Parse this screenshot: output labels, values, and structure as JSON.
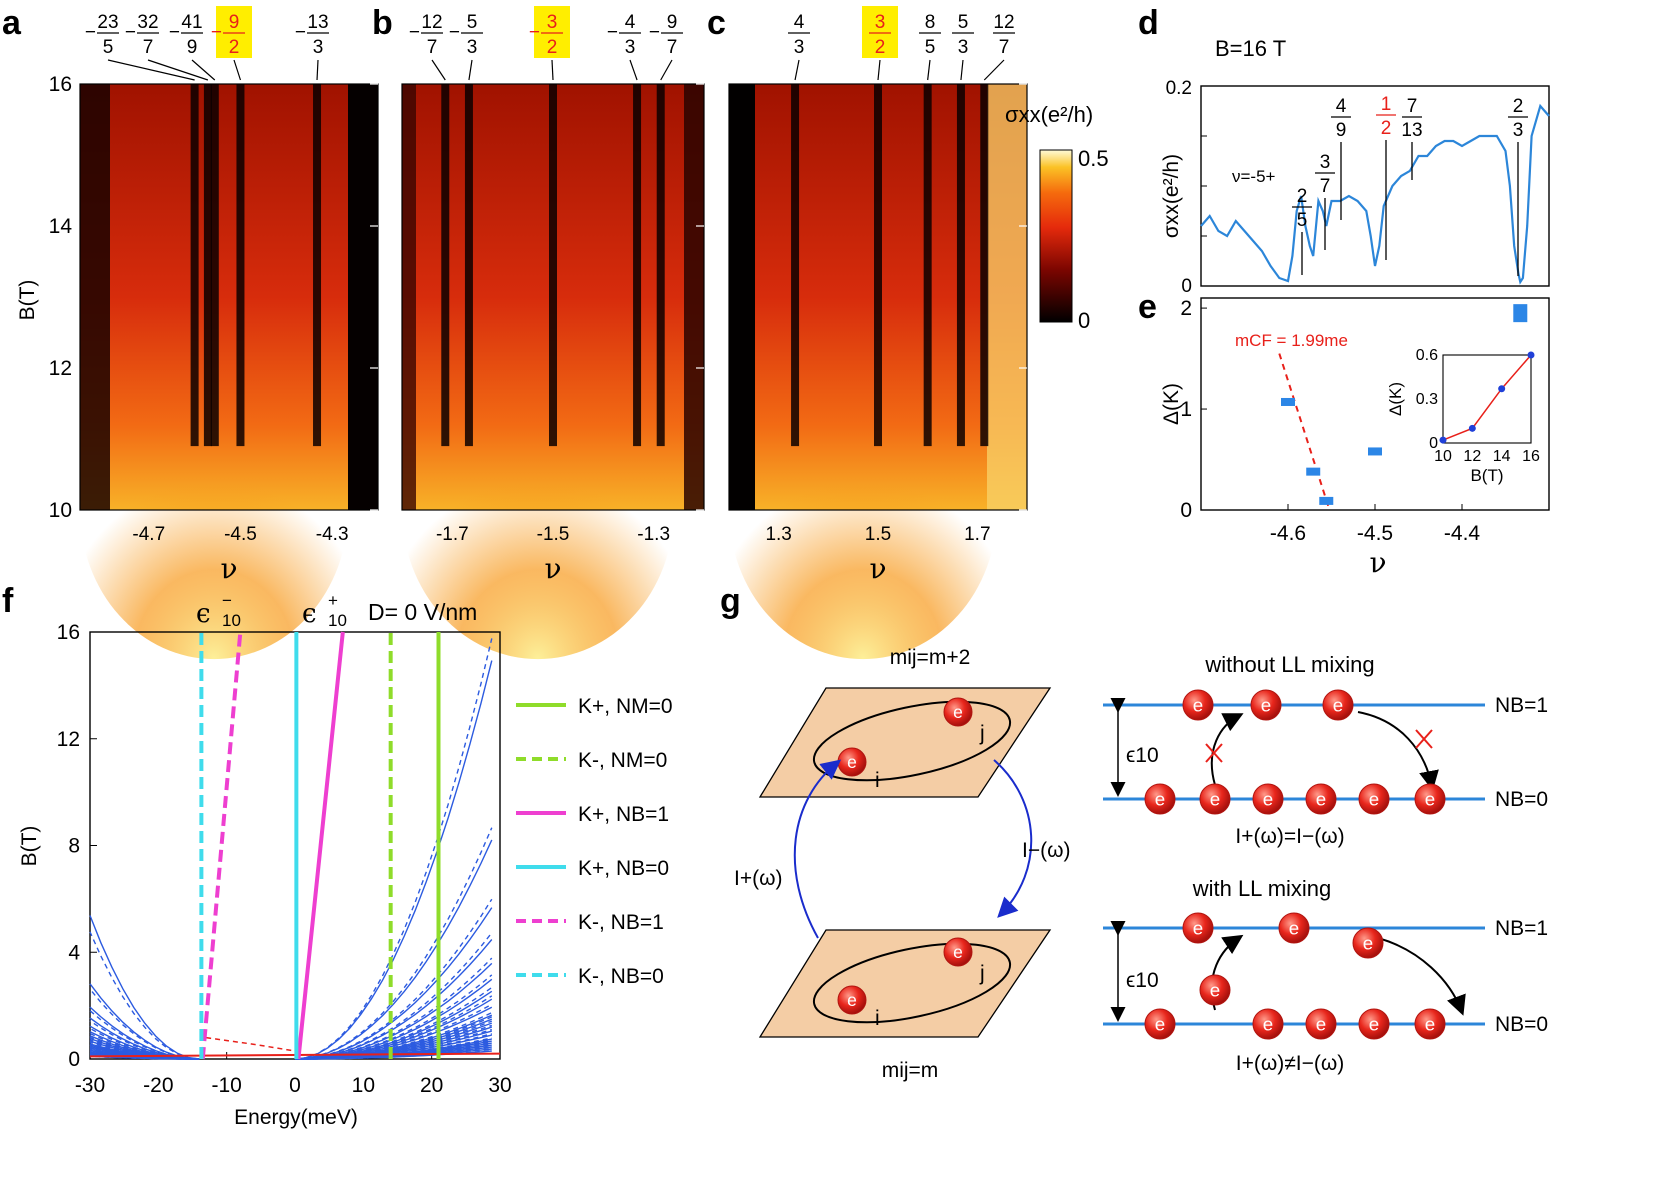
{
  "panels": {
    "a": "a",
    "b": "b",
    "c": "c",
    "d": "d",
    "e": "e",
    "f": "f",
    "g": "g"
  },
  "axis_common": {
    "b_label": "B(T)",
    "nu": "ν",
    "b_ticks": [
      "10",
      "12",
      "14",
      "16"
    ]
  },
  "colorbar": {
    "label": "σxx(e²/h)",
    "max": "0.5",
    "min": "0"
  },
  "map_a": {
    "x_ticks": [
      "-4.7",
      "-4.5",
      "-4.3"
    ],
    "fractions": [
      {
        "sign": "-",
        "num": "23",
        "den": "5",
        "highlight": false
      },
      {
        "sign": "-",
        "num": "32",
        "den": "7",
        "highlight": false
      },
      {
        "sign": "-",
        "num": "41",
        "den": "9",
        "highlight": false
      },
      {
        "sign": "-",
        "num": "9",
        "den": "2",
        "highlight": true
      },
      {
        "sign": "-",
        "num": "13",
        "den": "3",
        "highlight": false
      }
    ]
  },
  "map_b": {
    "x_ticks": [
      "-1.7",
      "-1.5",
      "-1.3"
    ],
    "fractions": [
      {
        "sign": "-",
        "num": "12",
        "den": "7",
        "highlight": false
      },
      {
        "sign": "-",
        "num": "5",
        "den": "3",
        "highlight": false
      },
      {
        "sign": "-",
        "num": "3",
        "den": "2",
        "highlight": true
      },
      {
        "sign": "-",
        "num": "4",
        "den": "3",
        "highlight": false
      },
      {
        "sign": "-",
        "num": "9",
        "den": "7",
        "highlight": false
      }
    ]
  },
  "map_c": {
    "x_ticks": [
      "1.3",
      "1.5",
      "1.7"
    ],
    "fractions": [
      {
        "sign": "",
        "num": "4",
        "den": "3",
        "highlight": false
      },
      {
        "sign": "",
        "num": "3",
        "den": "2",
        "highlight": true
      },
      {
        "sign": "",
        "num": "8",
        "den": "5",
        "highlight": false
      },
      {
        "sign": "",
        "num": "5",
        "den": "3",
        "highlight": false
      },
      {
        "sign": "",
        "num": "12",
        "den": "7",
        "highlight": false
      }
    ]
  },
  "panel_d": {
    "field": "B=16 T",
    "ylabel": "σxx(e²/h)",
    "y_ticks": [
      "0",
      "0.2"
    ],
    "prefix": "ν=-5+",
    "fractions": [
      {
        "num": "2",
        "den": "5",
        "color": "#000000"
      },
      {
        "num": "3",
        "den": "7",
        "color": "#000000"
      },
      {
        "num": "4",
        "den": "9",
        "color": "#000000"
      },
      {
        "num": "1",
        "den": "2",
        "color": "#e8201a"
      },
      {
        "num": "7",
        "den": "13",
        "color": "#000000"
      },
      {
        "num": "2",
        "den": "3",
        "color": "#000000"
      }
    ]
  },
  "panel_e": {
    "ylabel": "Δ(K)",
    "y_ticks": [
      "0",
      "1",
      "2"
    ],
    "x_ticks": [
      "-4.6",
      "-4.5",
      "-4.4"
    ],
    "fit_label": "mCF = 1.99me",
    "inset": {
      "ylabel": "Δ(K)",
      "xlabel": "B(T)",
      "x_ticks": [
        "10",
        "12",
        "14",
        "16"
      ],
      "y_ticks": [
        "0",
        "0.3",
        "0.6"
      ]
    }
  },
  "panel_f": {
    "ylabel": "B(T)",
    "xlabel": "Energy(meV)",
    "x_ticks": [
      "-30",
      "-20",
      "-10",
      "0",
      "10",
      "20",
      "30"
    ],
    "y_ticks": [
      "0",
      "4",
      "8",
      "12",
      "16"
    ],
    "eps_minus": "ϵ",
    "eps_minus_sup": "−",
    "eps_sub": "10",
    "eps_plus_sup": "+",
    "d_label": "D= 0 V/nm",
    "legend": [
      {
        "label": "K+, NM=0",
        "color": "#8fdc2a",
        "dash": false
      },
      {
        "label": "K-, NM=0",
        "color": "#8fdc2a",
        "dash": true
      },
      {
        "label": "K+, NB=1",
        "color": "#ee3fd0",
        "dash": false
      },
      {
        "label": "K+, NB=0",
        "color": "#3fdcec",
        "dash": false
      },
      {
        "label": "K-, NB=1",
        "color": "#ee3fd0",
        "dash": true
      },
      {
        "label": "K-, NB=0",
        "color": "#3fdcec",
        "dash": true
      }
    ]
  },
  "panel_g": {
    "top_plane": "mij=m+2",
    "bottom_plane": "mij=m",
    "i": "i",
    "j": "j",
    "e": "e",
    "I_plus": "I+(ω)",
    "I_minus": "I−(ω)",
    "without_title": "without LL mixing",
    "with_title": "with LL mixing",
    "NB1": "NB=1",
    "NB0": "NB=0",
    "eps": "ϵ10",
    "eq": "I+(ω)=I−(ω)",
    "neq": "I+(ω)≠I−(ω)"
  },
  "chart_data": [
    {
      "type": "heatmap",
      "panel": "a",
      "xlabel": "ν",
      "ylabel": "B(T)",
      "xlim": [
        -4.85,
        -4.2
      ],
      "ylim": [
        10,
        16
      ],
      "colorbar_range": [
        0,
        0.5
      ],
      "features": {
        "minima_nu": [
          -4.6,
          -4.571,
          -4.556,
          -4.5,
          -4.333
        ]
      }
    },
    {
      "type": "heatmap",
      "panel": "b",
      "xlabel": "ν",
      "ylabel": "B(T)",
      "xlim": [
        -1.8,
        -1.2
      ],
      "ylim": [
        10,
        16
      ],
      "colorbar_range": [
        0,
        0.5
      ],
      "features": {
        "minima_nu": [
          -1.714,
          -1.667,
          -1.5,
          -1.333,
          -1.286
        ]
      }
    },
    {
      "type": "heatmap",
      "panel": "c",
      "xlabel": "ν",
      "ylabel": "B(T)",
      "xlim": [
        1.2,
        1.8
      ],
      "ylim": [
        10,
        16
      ],
      "colorbar_range": [
        0,
        0.5
      ],
      "features": {
        "minima_nu": [
          1.333,
          1.5,
          1.6,
          1.667,
          1.714
        ]
      }
    },
    {
      "type": "line",
      "panel": "d",
      "title": "B=16 T",
      "xlabel": "ν",
      "ylabel": "σxx(e²/h)",
      "xlim": [
        -4.7,
        -4.3
      ],
      "ylim": [
        0,
        0.2
      ],
      "x": [
        -4.7,
        -4.69,
        -4.68,
        -4.67,
        -4.66,
        -4.65,
        -4.64,
        -4.63,
        -4.62,
        -4.61,
        -4.6,
        -4.595,
        -4.59,
        -4.585,
        -4.58,
        -4.575,
        -4.571,
        -4.565,
        -4.56,
        -4.556,
        -4.55,
        -4.54,
        -4.53,
        -4.52,
        -4.51,
        -4.505,
        -4.5,
        -4.495,
        -4.49,
        -4.48,
        -4.47,
        -4.46,
        -4.45,
        -4.44,
        -4.43,
        -4.42,
        -4.41,
        -4.4,
        -4.39,
        -4.38,
        -4.37,
        -4.36,
        -4.35,
        -4.345,
        -4.34,
        -4.335,
        -4.333,
        -4.33,
        -4.325,
        -4.32,
        -4.31,
        -4.3
      ],
      "y": [
        0.06,
        0.07,
        0.055,
        0.05,
        0.065,
        0.055,
        0.045,
        0.035,
        0.02,
        0.008,
        0.005,
        0.03,
        0.075,
        0.09,
        0.06,
        0.04,
        0.03,
        0.085,
        0.075,
        0.06,
        0.085,
        0.085,
        0.09,
        0.085,
        0.075,
        0.05,
        0.02,
        0.04,
        0.08,
        0.1,
        0.11,
        0.115,
        0.13,
        0.13,
        0.14,
        0.145,
        0.145,
        0.14,
        0.145,
        0.15,
        0.15,
        0.15,
        0.135,
        0.1,
        0.04,
        0.012,
        0.004,
        0.008,
        0.06,
        0.15,
        0.18,
        0.17
      ]
    },
    {
      "type": "scatter",
      "panel": "e",
      "xlabel": "ν",
      "ylabel": "Δ(K)",
      "xlim": [
        -4.7,
        -4.3
      ],
      "ylim": [
        0,
        2.1
      ],
      "x": [
        -4.6,
        -4.571,
        -4.556,
        -4.5,
        -4.333
      ],
      "y": [
        1.07,
        0.38,
        0.09,
        0.58,
        1.95
      ],
      "fit": {
        "label": "mCF = 1.99me",
        "x": [
          -4.61,
          -4.553
        ],
        "y": [
          1.55,
          0.02
        ]
      }
    },
    {
      "type": "line",
      "panel": "e-inset",
      "xlabel": "B(T)",
      "ylabel": "Δ(K)",
      "x": [
        10,
        12,
        14,
        16
      ],
      "y": [
        0.02,
        0.1,
        0.37,
        0.6
      ],
      "xlim": [
        10,
        16
      ],
      "ylim": [
        0,
        0.6
      ]
    },
    {
      "type": "line",
      "panel": "f",
      "xlabel": "Energy(meV)",
      "ylabel": "B(T)",
      "xlim": [
        -30,
        30
      ],
      "ylim": [
        0,
        16
      ],
      "series": [
        {
          "name": "K+, NM=0",
          "x": [
            21,
            21
          ],
          "y": [
            0,
            16
          ]
        },
        {
          "name": "K-, NM=0",
          "x": [
            14,
            14
          ],
          "y": [
            0,
            16
          ]
        },
        {
          "name": "K+, NB=1",
          "x": [
            0.5,
            7
          ],
          "y": [
            0,
            16
          ]
        },
        {
          "name": "K+, NB=0",
          "x": [
            0.2,
            0.2
          ],
          "y": [
            0,
            16
          ]
        },
        {
          "name": "K-, NB=1",
          "x": [
            -13.5,
            -8
          ],
          "y": [
            0,
            16
          ]
        },
        {
          "name": "K-, NB=0",
          "x": [
            -13.7,
            -13.7
          ],
          "y": [
            0,
            16
          ]
        }
      ]
    }
  ]
}
